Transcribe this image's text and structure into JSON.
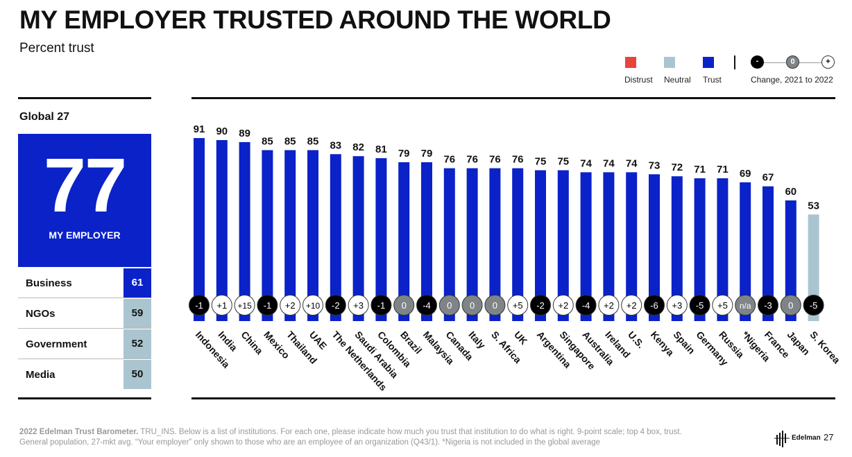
{
  "header": {
    "title": "MY EMPLOYER TRUSTED AROUND THE WORLD",
    "subtitle": "Percent trust"
  },
  "legend": {
    "items": [
      {
        "label": "Distrust",
        "color": "#e8443a"
      },
      {
        "label": "Neutral",
        "color": "#aac5d0"
      },
      {
        "label": "Trust",
        "color": "#0a22c8"
      }
    ],
    "change_label": "Change, 2021 to 2022",
    "change_symbols": [
      "-",
      "0",
      "+"
    ]
  },
  "global": {
    "label": "Global 27",
    "value": "77",
    "value_label": "MY EMPLOYER",
    "institutions": [
      {
        "name": "Business",
        "value": "61",
        "category": "trust"
      },
      {
        "name": "NGOs",
        "value": "59",
        "category": "neutral"
      },
      {
        "name": "Government",
        "value": "52",
        "category": "neutral"
      },
      {
        "name": "Media",
        "value": "50",
        "category": "neutral"
      }
    ]
  },
  "colors": {
    "trust": "#0a22c8",
    "neutral": "#aac5d0",
    "distrust": "#e8443a",
    "badge_neg": "#000000",
    "badge_zero": "#7f8487",
    "badge_pos": "#ffffff"
  },
  "chart_data": {
    "type": "bar",
    "title": "MY EMPLOYER TRUSTED AROUND THE WORLD",
    "ylabel": "Percent trust",
    "ylim": [
      0,
      100
    ],
    "categories": [
      "Indonesia",
      "India",
      "China",
      "Mexico",
      "Thailand",
      "UAE",
      "The Netherlands",
      "Saudi Arabia",
      "Colombia",
      "Brazil",
      "Malaysia",
      "Canada",
      "Italy",
      "S. Africa",
      "UK",
      "Argentina",
      "Singapore",
      "Australia",
      "Ireland",
      "U.S.",
      "Kenya",
      "Spain",
      "Germany",
      "Russia",
      "*Nigeria",
      "France",
      "Japan",
      "S. Korea"
    ],
    "values": [
      91,
      90,
      89,
      85,
      85,
      85,
      83,
      82,
      81,
      79,
      79,
      76,
      76,
      76,
      76,
      75,
      75,
      74,
      74,
      74,
      73,
      72,
      71,
      71,
      69,
      67,
      60,
      53
    ],
    "trust_category": [
      "trust",
      "trust",
      "trust",
      "trust",
      "trust",
      "trust",
      "trust",
      "trust",
      "trust",
      "trust",
      "trust",
      "trust",
      "trust",
      "trust",
      "trust",
      "trust",
      "trust",
      "trust",
      "trust",
      "trust",
      "trust",
      "trust",
      "trust",
      "trust",
      "trust",
      "trust",
      "trust",
      "neutral"
    ],
    "change_2021_to_2022": [
      "-1",
      "+1",
      "+15",
      "-1",
      "+2",
      "+10",
      "-2",
      "+3",
      "-1",
      "0",
      "-4",
      "0",
      "0",
      "0",
      "+5",
      "-2",
      "+2",
      "-4",
      "+2",
      "+2",
      "-6",
      "+3",
      "-5",
      "+5",
      "n/a",
      "-3",
      "0",
      "-5"
    ]
  },
  "footer": {
    "source_bold": "2022 Edelman Trust Barometer.",
    "source_line1": " TRU_INS. Below is a list of institutions. For each one, please indicate how much you trust that institution to do what is right. 9-point scale; top 4 box, trust.",
    "source_line2": "General population, 27-mkt avg. “Your employer” only shown to those who are an employee of an organization (Q43/1). *Nigeria is not included in the global average",
    "brand": "Edelman",
    "page": "27"
  }
}
